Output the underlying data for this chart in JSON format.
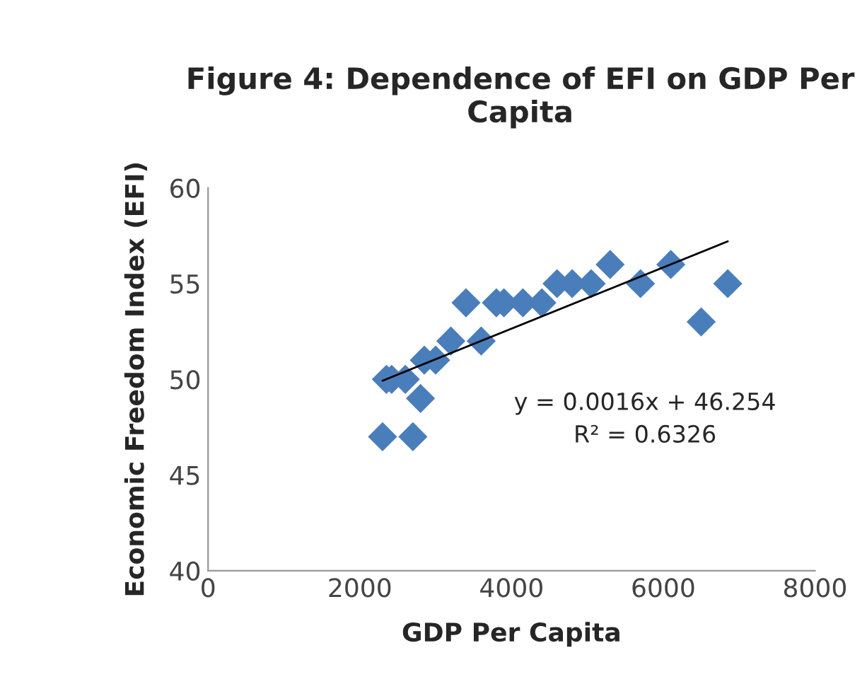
{
  "chart_data": {
    "type": "scatter",
    "title": "Figure 4: Dependence of EFI on GDP Per Capita",
    "xlabel": "GDP Per Capita",
    "ylabel": "Economic Freedom Index (EFI)",
    "series": [
      {
        "color": "#4a7ebb",
        "marker": "diamond",
        "x": [
          2300,
          2700,
          2800,
          2350,
          2420,
          2600,
          2850,
          3000,
          3200,
          3400,
          3600,
          3800,
          3900,
          4150,
          4400,
          4600,
          4800,
          5050,
          5300,
          5700,
          6100,
          6500,
          6850
        ],
        "values": [
          47,
          47,
          49,
          50,
          50,
          50,
          51,
          51,
          52,
          54,
          52,
          54,
          54,
          54,
          54,
          55,
          55,
          55,
          56,
          55,
          56,
          53,
          55
        ]
      },
      {
        "type": "line",
        "color": "#000000",
        "marker": "none",
        "line_style": "solid",
        "x": [
          2300,
          6850
        ],
        "values": [
          49.93,
          57.21
        ]
      }
    ],
    "annotations": [
      "y = 0.0016x + 46.254",
      "R² = 0.6326"
    ],
    "xlim": [
      0,
      8000
    ],
    "xticks": [
      0,
      2000,
      4000,
      6000,
      8000
    ],
    "ylim": [
      40,
      60
    ],
    "yticks": [
      40,
      45,
      50,
      55,
      60
    ],
    "grid": false,
    "legend": false
  }
}
